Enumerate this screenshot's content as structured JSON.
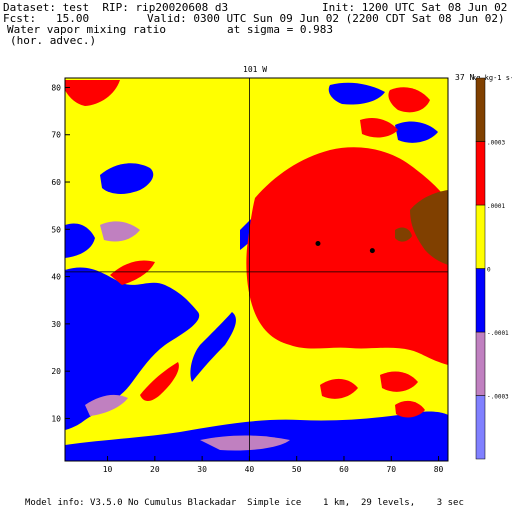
{
  "header": {
    "dataset": "Dataset: test  RIP: rip20020608 d3",
    "init": "Init: 1200 UTC Sat 08 Jun 02",
    "fcst": "Fcst:   15.00",
    "valid": "Valid: 0300 UTC Sun 09 Jun 02 (2200 CDT Sat 08 Jun 02)",
    "field": "Water vapor mixing ratio",
    "level": "at sigma = 0.983",
    "advec": "(hor. advec.)"
  },
  "footer": {
    "model_info": "Model info: V3.5.0 No Cumulus Blackadar  Simple ice    1 km,  29 levels,    3 sec"
  },
  "chart_data": {
    "type": "heatmap",
    "title": "Water vapor mixing ratio (hor. advec.) at sigma = 0.983",
    "top_labels": [
      "101 W",
      "37 N"
    ],
    "colorbar_unit": "kg kg-1 s-1",
    "xlim": [
      1,
      82
    ],
    "ylim": [
      1,
      82
    ],
    "xticks": [
      10,
      20,
      30,
      40,
      50,
      60,
      70,
      80
    ],
    "yticks": [
      10,
      20,
      30,
      40,
      50,
      60,
      70,
      80
    ],
    "crosshair": {
      "x": 40,
      "y": 41
    },
    "points": [
      {
        "x": 54.5,
        "y": 47
      },
      {
        "x": 66,
        "y": 45.5
      }
    ],
    "colorbar": {
      "colors": [
        "#8080ff",
        "#c080c0",
        "#0000ff",
        "#ffff00",
        "#ff0000",
        "#804000"
      ],
      "labels": [
        "-.0003",
        "-.0001",
        "0",
        ".0001",
        ".0003"
      ]
    },
    "regions": {
      "background": "#ffff00",
      "blue_zones": "#0000ff",
      "red_zones": "#ff0000",
      "purple_zones": "#c080c0",
      "brown_zones": "#804000"
    }
  }
}
